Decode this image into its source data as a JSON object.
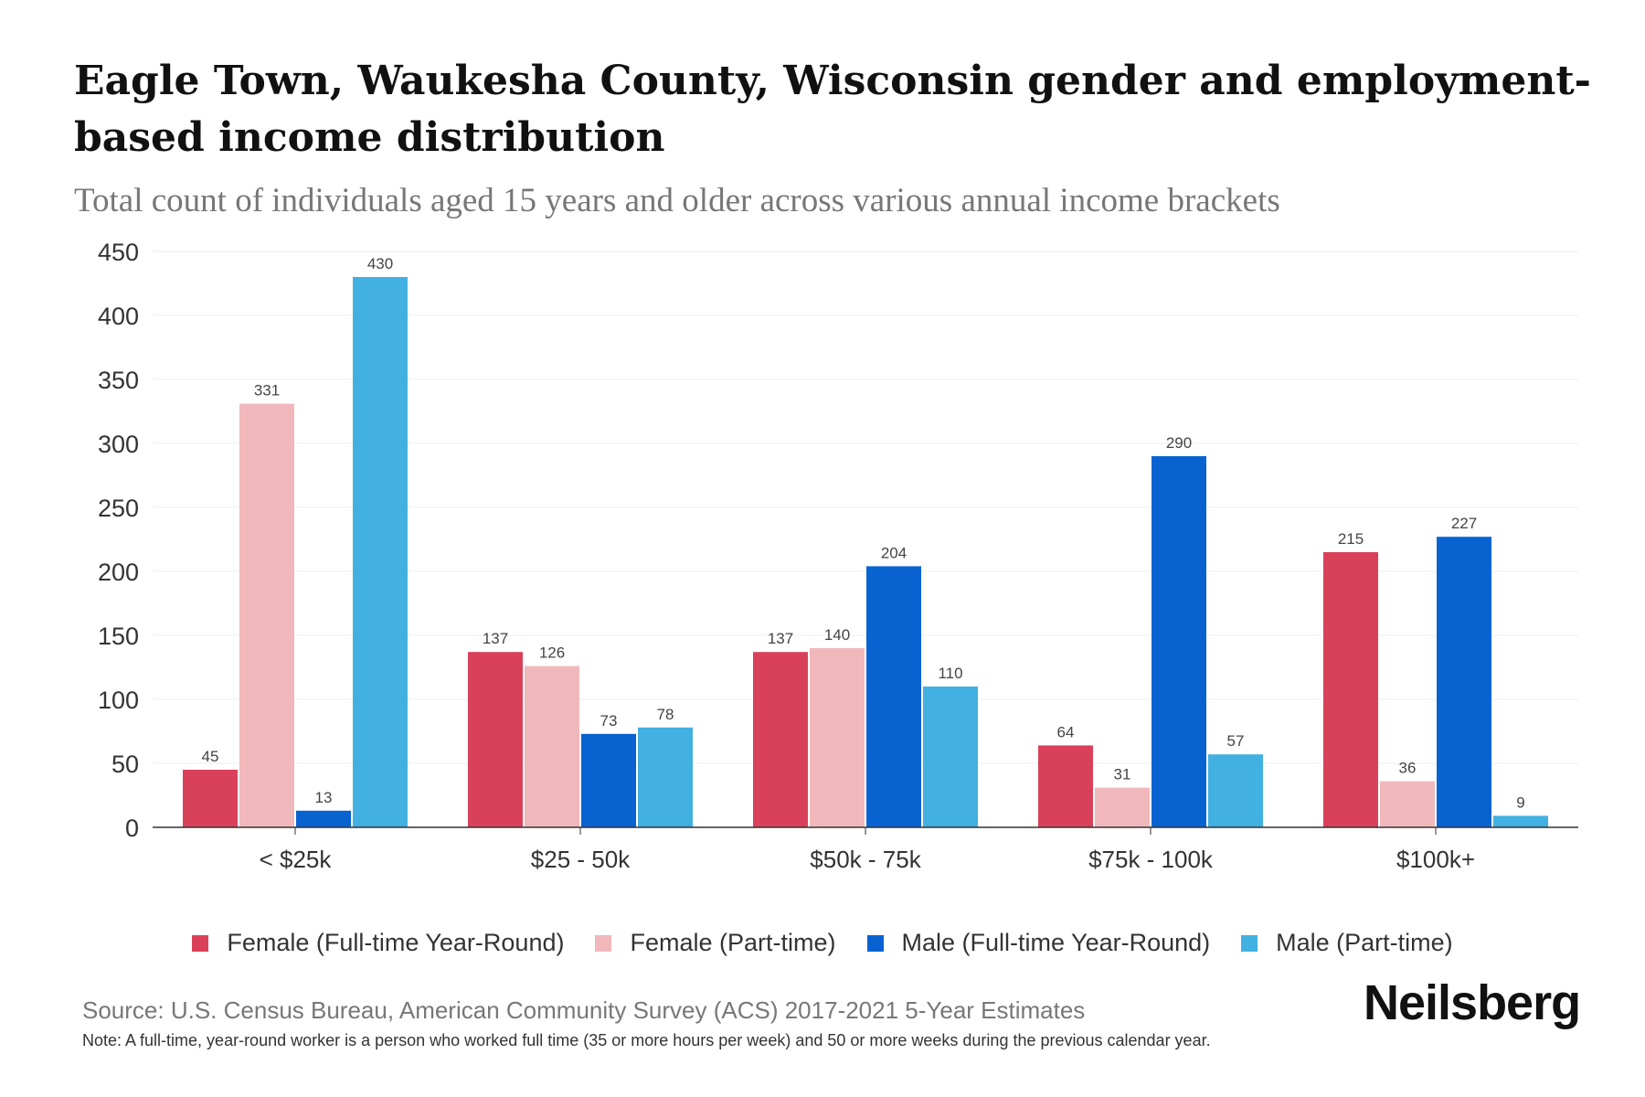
{
  "title": "Eagle Town, Waukesha County, Wisconsin gender and employment-based income distribution",
  "subtitle": "Total count of individuals aged 15 years and older across various annual income brackets",
  "source": "Source: U.S. Census Bureau, American Community Survey (ACS) 2017-2021 5-Year Estimates",
  "note": "Note: A full-time, year-round worker is a person who worked full time (35 or more hours per week) and 50 or more weeks during the previous calendar year.",
  "logo": "Neilsberg",
  "chart_data": {
    "type": "bar",
    "categories": [
      "< $25k",
      "$25 - 50k",
      "$50k - 75k",
      "$75k - 100k",
      "$100k+"
    ],
    "series": [
      {
        "name": "Female (Full-time Year-Round)",
        "color": "#d9415a",
        "values": [
          45,
          137,
          137,
          64,
          215
        ]
      },
      {
        "name": "Female (Part-time)",
        "color": "#f0b8ba",
        "values": [
          331,
          126,
          140,
          31,
          36
        ]
      },
      {
        "name": "Male (Full-time Year-Round)",
        "color": "#0863d1",
        "values": [
          13,
          73,
          204,
          290,
          227
        ]
      },
      {
        "name": "Male (Part-time)",
        "color": "#42b0e0",
        "values": [
          430,
          78,
          110,
          57,
          9
        ]
      }
    ],
    "yticks": [
      0,
      50,
      100,
      150,
      200,
      250,
      300,
      350,
      400,
      450
    ],
    "ylim": [
      0,
      450
    ],
    "grid": true,
    "legend": "bottom"
  }
}
